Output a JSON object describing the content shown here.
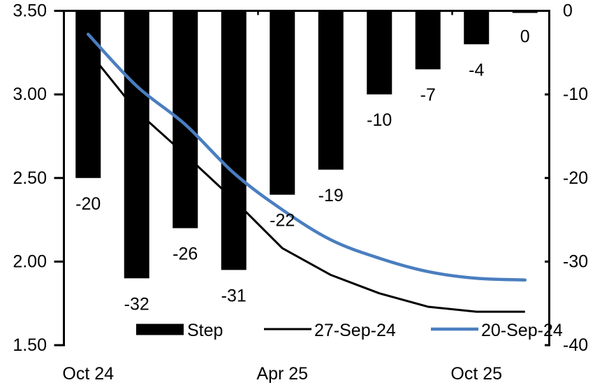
{
  "chart_data": {
    "type": "combo-bar-line",
    "n_categories": 10,
    "x_axis": {
      "tick_labels": [
        {
          "text": "Oct 24",
          "index": 0
        },
        {
          "text": "Apr 25",
          "index": 4
        },
        {
          "text": "Oct 25",
          "index": 8
        }
      ]
    },
    "left_axis": {
      "min": 1.5,
      "max": 3.5,
      "ticks": [
        "3.50",
        "3.00",
        "2.50",
        "2.00",
        "1.50"
      ]
    },
    "right_axis": {
      "min": -40,
      "max": 0,
      "ticks": [
        "0",
        "-10",
        "-20",
        "-30",
        "-40"
      ]
    },
    "grid": false,
    "bars": {
      "name": "Step",
      "axis": "right",
      "color": "#000000",
      "values": [
        -20,
        -32,
        -26,
        -31,
        -22,
        -19,
        -10,
        -7,
        -4,
        0
      ],
      "labels": [
        "-20",
        "-32",
        "-26",
        "-31",
        "-22",
        "-19",
        "-10",
        "-7",
        "-4",
        "0"
      ]
    },
    "lines": [
      {
        "name": "27-Sep-24",
        "axis": "left",
        "color": "#000000",
        "stroke_width": 3,
        "smooth": false,
        "values": [
          3.26,
          2.9,
          2.64,
          2.37,
          2.08,
          1.92,
          1.81,
          1.73,
          1.7,
          1.7
        ]
      },
      {
        "name": "20-Sep-24",
        "axis": "left",
        "color": "#4A7EBF",
        "stroke_width": 4.5,
        "smooth": true,
        "values": [
          3.36,
          3.05,
          2.82,
          2.53,
          2.31,
          2.13,
          2.02,
          1.94,
          1.9,
          1.89
        ]
      }
    ],
    "legend": {
      "position": "bottom-inside",
      "items": [
        {
          "label": "Step",
          "type": "bar",
          "color": "#000000"
        },
        {
          "label": "27-Sep-24",
          "type": "line",
          "color": "#000000"
        },
        {
          "label": "20-Sep-24",
          "type": "line",
          "color": "#4A7EBF"
        }
      ]
    }
  }
}
